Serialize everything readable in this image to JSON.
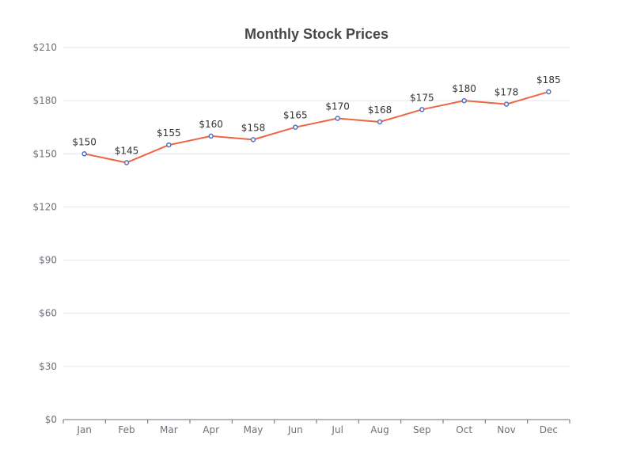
{
  "chart_data": {
    "type": "line",
    "title": "Monthly Stock Prices",
    "xlabel": "",
    "ylabel": "",
    "categories": [
      "Jan",
      "Feb",
      "Mar",
      "Apr",
      "May",
      "Jun",
      "Jul",
      "Aug",
      "Sep",
      "Oct",
      "Nov",
      "Dec"
    ],
    "values": [
      150,
      145,
      155,
      160,
      158,
      165,
      170,
      168,
      175,
      180,
      178,
      185
    ],
    "data_labels": [
      "$150",
      "$145",
      "$155",
      "$160",
      "$158",
      "$165",
      "$170",
      "$168",
      "$175",
      "$180",
      "$178",
      "$185"
    ],
    "y_ticks": [
      0,
      30,
      60,
      90,
      120,
      150,
      180,
      210
    ],
    "y_tick_labels": [
      "$0",
      "$30",
      "$60",
      "$90",
      "$120",
      "$150",
      "$180",
      "$210"
    ],
    "ylim": [
      0,
      210
    ],
    "grid": true,
    "legend": "none",
    "line_color": "#ee6644",
    "marker_color": "#5470c6"
  }
}
